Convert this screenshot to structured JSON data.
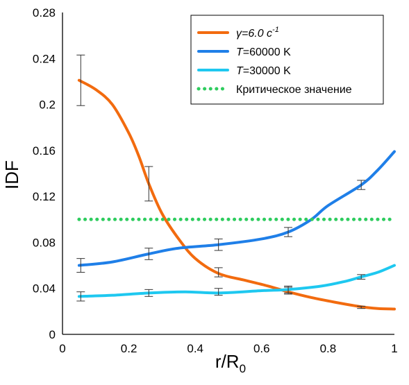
{
  "chart_data": {
    "type": "line",
    "xlabel": "r/R",
    "xlabel_sub": "0",
    "ylabel": "IDF",
    "xlim": [
      0,
      1
    ],
    "ylim": [
      0,
      0.28
    ],
    "x_ticks": [
      "0",
      "0.2",
      "0.4",
      "0.6",
      "0.8",
      "1"
    ],
    "y_ticks": [
      "0",
      "0.04",
      "0.08",
      "0.12",
      "0.16",
      "0.2",
      "0.24",
      "0.28"
    ],
    "legend_position": "top-right",
    "grid": false,
    "series": [
      {
        "key": "gamma",
        "name_prefix": "γ=6.0 c",
        "name_sup": "-1",
        "color": "#f26b0f",
        "style": "solid",
        "x": [
          0.05,
          0.1,
          0.15,
          0.2,
          0.23,
          0.26,
          0.3,
          0.35,
          0.4,
          0.47,
          0.55,
          0.62,
          0.68,
          0.75,
          0.82,
          0.9,
          0.95,
          1.0
        ],
        "y": [
          0.221,
          0.213,
          0.2,
          0.175,
          0.155,
          0.131,
          0.105,
          0.083,
          0.066,
          0.053,
          0.047,
          0.042,
          0.037,
          0.032,
          0.028,
          0.024,
          0.0225,
          0.022
        ],
        "error_bars": [
          {
            "x": 0.055,
            "y": 0.221,
            "err": 0.022
          },
          {
            "x": 0.26,
            "y": 0.131,
            "err": 0.015
          },
          {
            "x": 0.47,
            "y": 0.054,
            "err": 0.004
          },
          {
            "x": 0.68,
            "y": 0.038,
            "err": 0.003
          },
          {
            "x": 0.9,
            "y": 0.0235,
            "err": 0.001
          }
        ]
      },
      {
        "key": "t60000",
        "name_italic": "T",
        "name_rest": "=60000 K",
        "color": "#1f7fe8",
        "style": "solid",
        "x": [
          0.05,
          0.15,
          0.26,
          0.35,
          0.47,
          0.6,
          0.68,
          0.75,
          0.8,
          0.9,
          0.95,
          1.0
        ],
        "y": [
          0.06,
          0.063,
          0.07,
          0.075,
          0.078,
          0.083,
          0.089,
          0.1,
          0.112,
          0.13,
          0.143,
          0.159
        ],
        "error_bars": [
          {
            "x": 0.055,
            "y": 0.06,
            "err": 0.006
          },
          {
            "x": 0.26,
            "y": 0.07,
            "err": 0.005
          },
          {
            "x": 0.47,
            "y": 0.078,
            "err": 0.005
          },
          {
            "x": 0.68,
            "y": 0.089,
            "err": 0.004
          },
          {
            "x": 0.9,
            "y": 0.13,
            "err": 0.004
          }
        ]
      },
      {
        "key": "t30000",
        "name_italic": "T",
        "name_rest": "=30000 K",
        "color": "#1ec8f0",
        "style": "solid",
        "x": [
          0.05,
          0.15,
          0.26,
          0.37,
          0.47,
          0.6,
          0.68,
          0.78,
          0.85,
          0.9,
          0.95,
          1.0
        ],
        "y": [
          0.033,
          0.034,
          0.036,
          0.037,
          0.036,
          0.038,
          0.039,
          0.042,
          0.046,
          0.05,
          0.054,
          0.06
        ],
        "error_bars": [
          {
            "x": 0.055,
            "y": 0.033,
            "err": 0.004
          },
          {
            "x": 0.26,
            "y": 0.036,
            "err": 0.003
          },
          {
            "x": 0.47,
            "y": 0.037,
            "err": 0.003
          },
          {
            "x": 0.68,
            "y": 0.039,
            "err": 0.003
          },
          {
            "x": 0.9,
            "y": 0.05,
            "err": 0.002
          }
        ]
      },
      {
        "key": "critical",
        "name": "Критическое значение",
        "color": "#2ecc5e",
        "style": "dotted",
        "x": [
          0.05,
          1.0
        ],
        "y": [
          0.1,
          0.1
        ]
      }
    ]
  }
}
